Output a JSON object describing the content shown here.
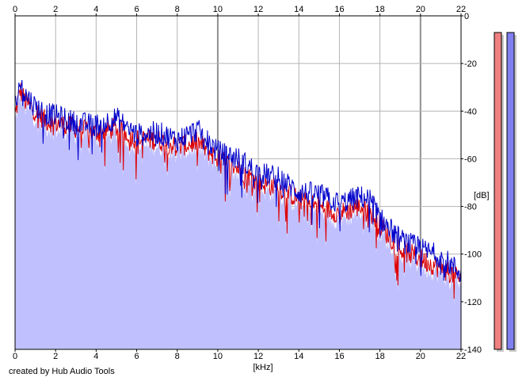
{
  "chart_data": {
    "type": "area",
    "xlabel": "[kHz]",
    "ylabel": "[dB]",
    "xlim": [
      0,
      22
    ],
    "ylim": [
      -140,
      0
    ],
    "x_ticks": [
      "0",
      "2",
      "4",
      "6",
      "8",
      "10",
      "12",
      "14",
      "16",
      "18",
      "20",
      "22"
    ],
    "y_ticks": [
      "0",
      "-20",
      "-40",
      "-60",
      "-80",
      "-100",
      "-120",
      "-140"
    ],
    "grid": true,
    "series": [
      {
        "color": "#0000cc",
        "x": [
          0,
          0.25,
          0.5,
          1,
          1.5,
          2,
          3,
          4,
          5,
          6,
          7,
          8,
          9,
          10,
          11,
          12,
          13,
          14,
          15,
          16,
          17,
          17.5,
          18,
          19,
          20,
          21,
          22
        ],
        "y": [
          -38,
          -28,
          -33,
          -38,
          -41,
          -42,
          -45,
          -46,
          -43,
          -50,
          -49,
          -52,
          -48,
          -57,
          -60,
          -66,
          -68,
          -74,
          -75,
          -79,
          -76,
          -77,
          -85,
          -94,
          -98,
          -101,
          -108
        ]
      },
      {
        "color": "#dd0000",
        "x": [
          0,
          0.25,
          0.5,
          1,
          1.5,
          2,
          3,
          4,
          5,
          6,
          7,
          8,
          9,
          10,
          11,
          12,
          13,
          14,
          15,
          16,
          17,
          17.5,
          18,
          19,
          20,
          21,
          22
        ],
        "y": [
          -42,
          -31,
          -36,
          -40,
          -44,
          -45,
          -47,
          -49,
          -47,
          -52,
          -52,
          -55,
          -53,
          -60,
          -64,
          -70,
          -72,
          -77,
          -80,
          -83,
          -80,
          -82,
          -88,
          -98,
          -102,
          -106,
          -110
        ]
      }
    ],
    "fill_color": "#c0c0ff",
    "meters": [
      {
        "color": "#f08080",
        "level_db": -7
      },
      {
        "color": "#8080f0",
        "level_db": -7
      }
    ]
  },
  "footer": {
    "credit": "created by Hub Audio Tools"
  }
}
